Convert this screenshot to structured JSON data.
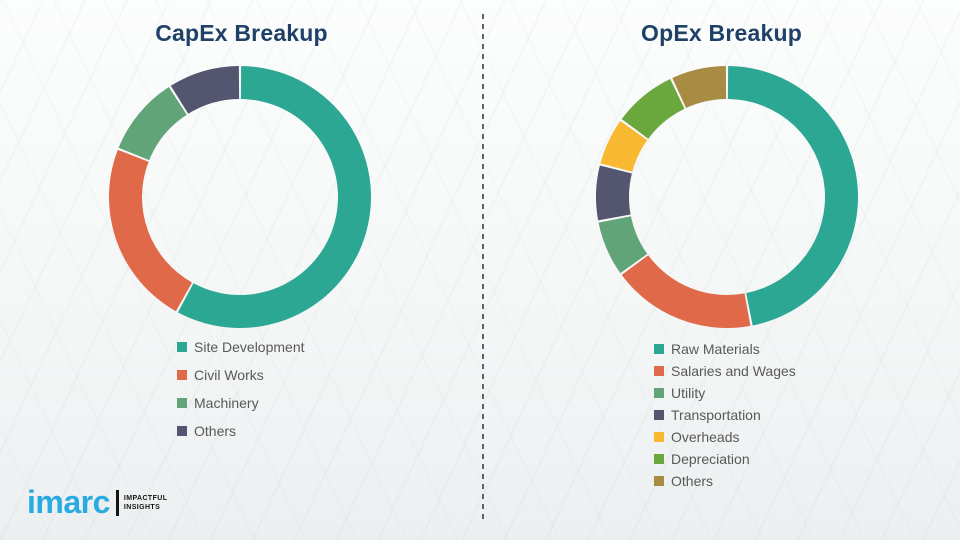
{
  "page": {
    "background_color": "#f7f8f7",
    "title_color": "#1f4168",
    "legend_text_color": "#595959"
  },
  "chart_data": [
    {
      "type": "pie",
      "subtype": "donut",
      "title": "CapEx Breakup",
      "categories": [
        "Site Development",
        "Civil Works",
        "Machinery",
        "Others"
      ],
      "values": [
        58,
        23,
        10,
        9
      ],
      "unit": "percent-estimated",
      "colors": [
        "#2ca794",
        "#e0694a",
        "#60a478",
        "#54566f"
      ],
      "start_angle_deg": 0,
      "direction": "clockwise",
      "legend_position": "below-chart-left",
      "data_labels_shown": false
    },
    {
      "type": "pie",
      "subtype": "donut",
      "title": "OpEx Breakup",
      "categories": [
        "Raw Materials",
        "Salaries and Wages",
        "Utility",
        "Transportation",
        "Overheads",
        "Depreciation",
        "Others"
      ],
      "values": [
        47,
        18,
        7,
        7,
        6,
        8,
        7
      ],
      "unit": "percent-estimated",
      "colors": [
        "#2ca794",
        "#e0694a",
        "#60a478",
        "#54566f",
        "#f8b831",
        "#6aa83e",
        "#a98c43"
      ],
      "start_angle_deg": 0,
      "direction": "clockwise",
      "legend_position": "below-chart-left",
      "data_labels_shown": false
    }
  ],
  "brand": {
    "logo_text": "imarc",
    "logo_color": "#29abe2",
    "tagline_line1": "IMPACTFUL",
    "tagline_line2": "INSIGHTS"
  }
}
